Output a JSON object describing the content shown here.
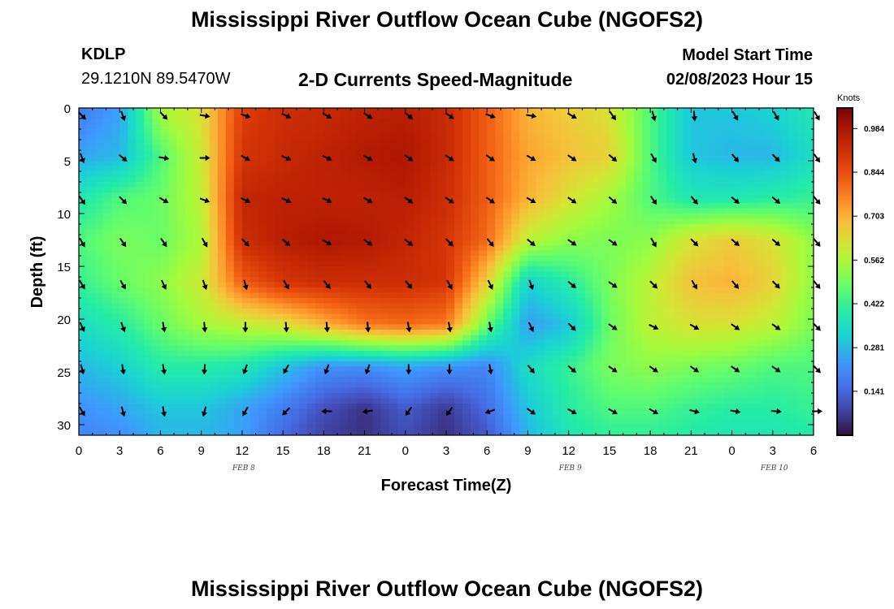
{
  "header": {
    "title": "Mississippi River Outflow Ocean Cube (NGOFS2)",
    "station": "KDLP",
    "coordinates": "29.1210N  89.5470W",
    "subtitle": "2-D Currents Speed-Magnitude",
    "model_start_label": "Model Start Time",
    "model_start_value": "02/08/2023 Hour 15"
  },
  "footer": {
    "title": "Mississippi River Outflow Ocean Cube (NGOFS2)"
  },
  "colorbar": {
    "unit": "Knots",
    "ticks": [
      "0.984",
      "0.844",
      "0.703",
      "0.562",
      "0.422",
      "0.281",
      "0.141"
    ],
    "range": [
      0.0,
      1.05
    ]
  },
  "chart_data": {
    "type": "heatmap",
    "xlabel": "Forecast Time(Z)",
    "ylabel": "Depth (ft)",
    "x_tick_labels": [
      "0",
      "3",
      "6",
      "9",
      "12",
      "15",
      "18",
      "21",
      "0",
      "3",
      "6",
      "9",
      "12",
      "15",
      "18",
      "21",
      "0",
      "3",
      "6"
    ],
    "x_range_hours": [
      0,
      54
    ],
    "y_ticks": [
      0,
      5,
      10,
      15,
      20,
      25,
      30
    ],
    "ylim": [
      0,
      31
    ],
    "date_labels": [
      {
        "text": "FEB 8",
        "hour": 12
      },
      {
        "text": "FEB 9",
        "hour": 36
      },
      {
        "text": "FEB 10",
        "hour": 51
      }
    ],
    "grid_hours": [
      0,
      3,
      6,
      9,
      12,
      15,
      18,
      21,
      24,
      27,
      30,
      33,
      36,
      39,
      42,
      45,
      48,
      51,
      54
    ],
    "grid_depths": [
      0.5,
      4.5,
      8.5,
      12.5,
      16.5,
      20.5,
      24.5,
      28.5,
      30.5
    ],
    "speed": [
      [
        0.18,
        0.25,
        0.55,
        0.62,
        0.88,
        0.92,
        0.93,
        0.95,
        0.96,
        0.93,
        0.82,
        0.7,
        0.66,
        0.62,
        0.45,
        0.3,
        0.3,
        0.32,
        0.38
      ],
      [
        0.25,
        0.28,
        0.45,
        0.6,
        0.9,
        0.93,
        0.95,
        0.97,
        0.98,
        0.93,
        0.82,
        0.72,
        0.68,
        0.65,
        0.45,
        0.3,
        0.28,
        0.28,
        0.35
      ],
      [
        0.38,
        0.45,
        0.48,
        0.58,
        0.94,
        0.95,
        0.95,
        0.95,
        0.96,
        0.92,
        0.82,
        0.7,
        0.62,
        0.55,
        0.45,
        0.38,
        0.38,
        0.4,
        0.42
      ],
      [
        0.45,
        0.5,
        0.48,
        0.56,
        0.92,
        0.96,
        0.98,
        0.97,
        0.94,
        0.9,
        0.8,
        0.58,
        0.52,
        0.5,
        0.52,
        0.62,
        0.66,
        0.62,
        0.52
      ],
      [
        0.42,
        0.48,
        0.52,
        0.6,
        0.82,
        0.9,
        0.92,
        0.92,
        0.92,
        0.9,
        0.65,
        0.32,
        0.4,
        0.5,
        0.58,
        0.68,
        0.7,
        0.65,
        0.52
      ],
      [
        0.35,
        0.4,
        0.48,
        0.55,
        0.58,
        0.62,
        0.7,
        0.78,
        0.8,
        0.78,
        0.48,
        0.24,
        0.3,
        0.48,
        0.58,
        0.62,
        0.62,
        0.58,
        0.5
      ],
      [
        0.28,
        0.32,
        0.4,
        0.4,
        0.38,
        0.3,
        0.22,
        0.22,
        0.25,
        0.22,
        0.2,
        0.35,
        0.42,
        0.5,
        0.52,
        0.5,
        0.48,
        0.45,
        0.45
      ],
      [
        0.22,
        0.25,
        0.3,
        0.3,
        0.25,
        0.18,
        0.1,
        0.05,
        0.12,
        0.06,
        0.15,
        0.3,
        0.4,
        0.45,
        0.45,
        0.42,
        0.4,
        0.4,
        0.42
      ],
      [
        0.2,
        0.22,
        0.28,
        0.28,
        0.25,
        0.15,
        0.08,
        0.05,
        0.1,
        0.05,
        0.12,
        0.28,
        0.38,
        0.42,
        0.42,
        0.4,
        0.38,
        0.38,
        0.4
      ]
    ],
    "vectors": [
      {
        "depth": 0.5,
        "dirs_deg": [
          135,
          160,
          135,
          100,
          110,
          115,
          120,
          125,
          130,
          125,
          110,
          100,
          120,
          145,
          165,
          175,
          150,
          150,
          150
        ]
      },
      {
        "depth": 4.5,
        "dirs_deg": [
          160,
          130,
          100,
          90,
          120,
          115,
          115,
          120,
          125,
          125,
          125,
          120,
          125,
          130,
          150,
          165,
          140,
          135,
          145
        ]
      },
      {
        "depth": 8.5,
        "dirs_deg": [
          145,
          135,
          120,
          110,
          115,
          115,
          115,
          120,
          125,
          125,
          125,
          120,
          125,
          130,
          145,
          140,
          130,
          130,
          140
        ]
      },
      {
        "depth": 12.5,
        "dirs_deg": [
          150,
          145,
          145,
          150,
          135,
          130,
          120,
          125,
          130,
          135,
          140,
          130,
          125,
          125,
          150,
          135,
          130,
          130,
          140
        ]
      },
      {
        "depth": 16.5,
        "dirs_deg": [
          150,
          150,
          155,
          160,
          165,
          150,
          140,
          140,
          140,
          150,
          155,
          160,
          130,
          125,
          135,
          150,
          140,
          135,
          140
        ]
      },
      {
        "depth": 20.5,
        "dirs_deg": [
          155,
          160,
          170,
          175,
          180,
          175,
          175,
          175,
          170,
          170,
          170,
          155,
          135,
          125,
          115,
          120,
          125,
          125,
          135
        ]
      },
      {
        "depth": 24.5,
        "dirs_deg": [
          165,
          170,
          170,
          185,
          200,
          210,
          200,
          200,
          180,
          180,
          170,
          140,
          130,
          125,
          125,
          125,
          125,
          125,
          135
        ]
      },
      {
        "depth": 28.5,
        "dirs_deg": [
          150,
          165,
          170,
          195,
          210,
          225,
          270,
          260,
          215,
          215,
          250,
          125,
          120,
          120,
          120,
          105,
          100,
          95,
          90
        ]
      }
    ]
  }
}
